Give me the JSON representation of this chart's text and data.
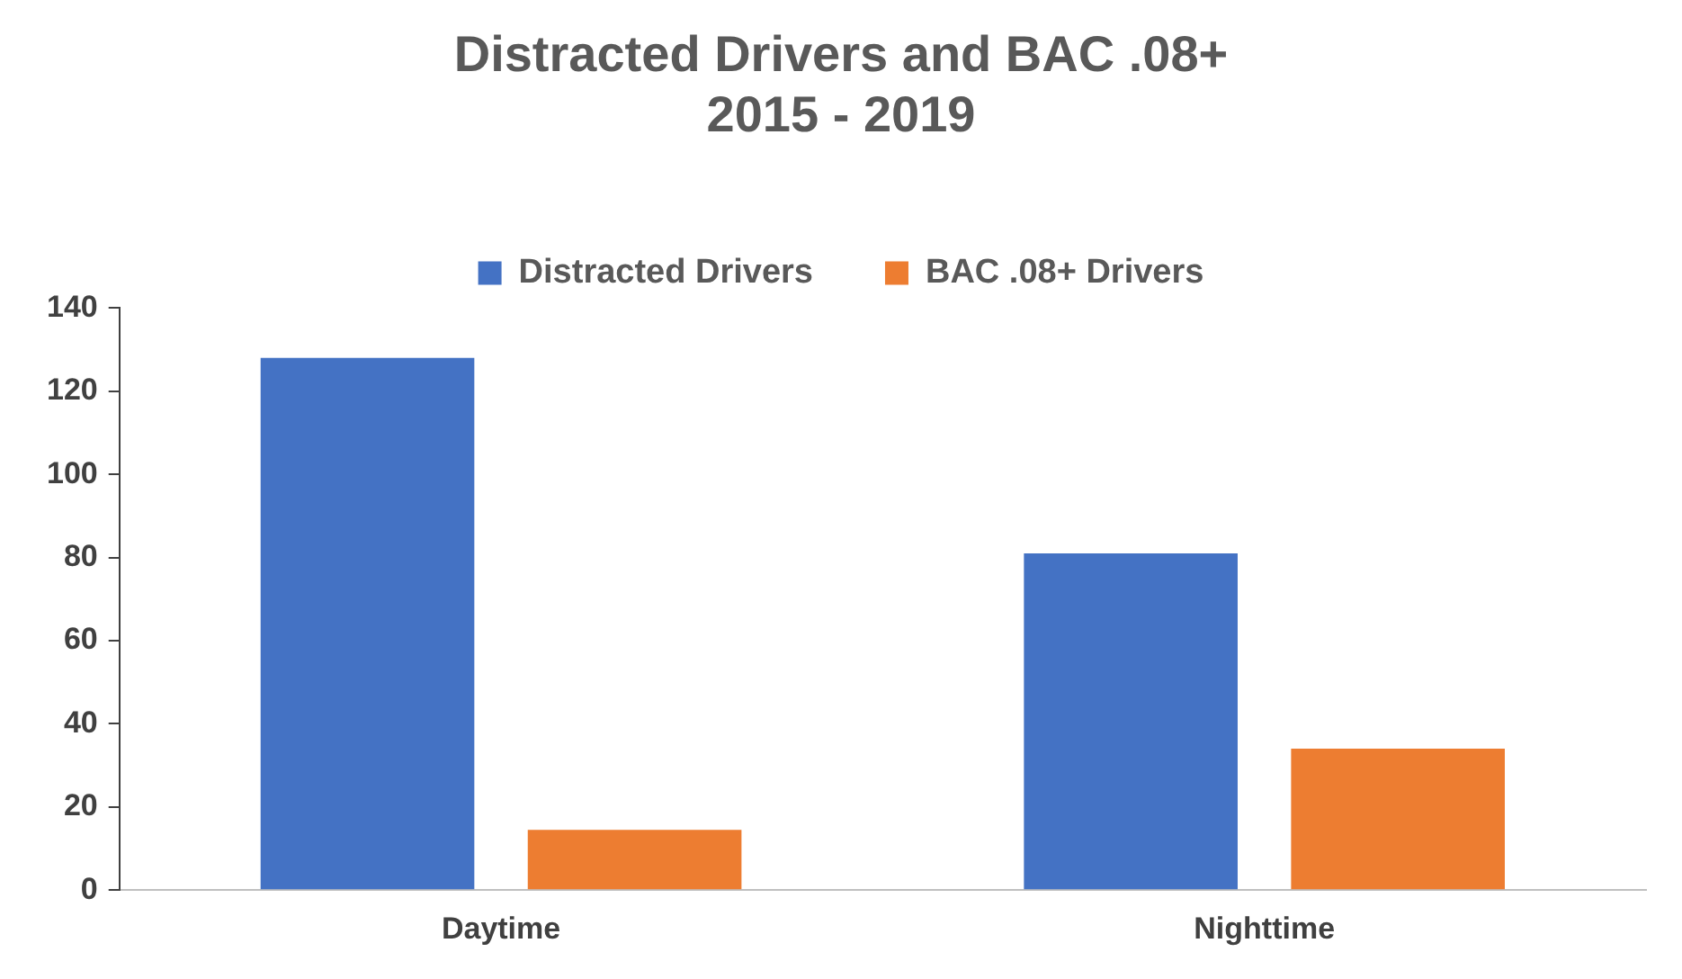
{
  "chart_data": {
    "type": "bar",
    "title": [
      "Distracted Drivers and BAC .08+",
      "2015 - 2019"
    ],
    "categories": [
      "Daytime",
      "Nighttime"
    ],
    "series": [
      {
        "name": "Distracted Drivers",
        "color": "#4472c4",
        "values": [
          128,
          81
        ]
      },
      {
        "name": "BAC .08+ Drivers",
        "color": "#ed7d31",
        "values": [
          14.5,
          34
        ]
      }
    ],
    "ylim": [
      0,
      140
    ],
    "yticks": [
      0,
      20,
      40,
      60,
      80,
      100,
      120,
      140
    ],
    "grid": false,
    "legend": "top"
  }
}
